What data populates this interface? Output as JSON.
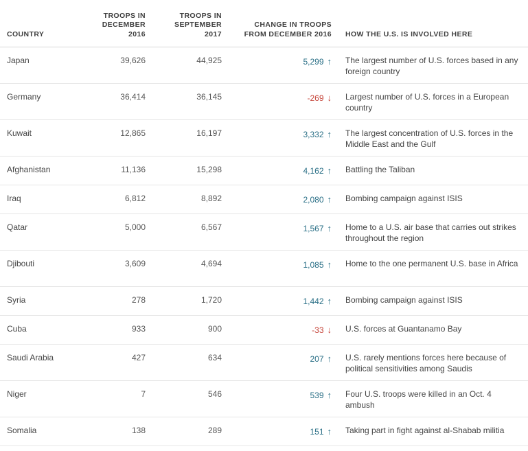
{
  "headers": {
    "country": "COUNTRY",
    "december": [
      "TROOPS IN",
      "DECEMBER",
      "2016"
    ],
    "september": [
      "TROOPS IN",
      "SEPTEMBER",
      "2017"
    ],
    "change": [
      "CHANGE IN TROOPS",
      "FROM DECEMBER 2016"
    ],
    "how": "HOW THE U.S. IS INVOLVED HERE"
  },
  "colors": {
    "increase": "#2a6f86",
    "decrease": "#c6463b"
  },
  "rows": [
    {
      "country": "Japan",
      "dec": "39,626",
      "sep": "44,925",
      "change": "5,299",
      "direction": "up",
      "arrow": "↑",
      "how": "The largest number of U.S. forces based in any foreign country"
    },
    {
      "country": "Germany",
      "dec": "36,414",
      "sep": "36,145",
      "change": "-269",
      "direction": "down",
      "arrow": "↓",
      "how": "Largest number of U.S. forces in a European country"
    },
    {
      "country": "Kuwait",
      "dec": "12,865",
      "sep": "16,197",
      "change": "3,332",
      "direction": "up",
      "arrow": "↑",
      "how": "The largest concentration of U.S. forces in the Middle East and the Gulf"
    },
    {
      "country": "Afghanistan",
      "dec": "11,136",
      "sep": "15,298",
      "change": "4,162",
      "direction": "up",
      "arrow": "↑",
      "how": "Battling the Taliban"
    },
    {
      "country": "Iraq",
      "dec": "6,812",
      "sep": "8,892",
      "change": "2,080",
      "direction": "up",
      "arrow": "↑",
      "how": "Bombing campaign against ISIS"
    },
    {
      "country": "Qatar",
      "dec": "5,000",
      "sep": "6,567",
      "change": "1,567",
      "direction": "up",
      "arrow": "↑",
      "how": "Home to a U.S. air base that carries out strikes throughout the region"
    },
    {
      "country": "Djibouti",
      "dec": "3,609",
      "sep": "4,694",
      "change": "1,085",
      "direction": "up",
      "arrow": "↑",
      "how": "Home to the one permanent U.S. base in Africa"
    },
    {
      "country": "Syria",
      "dec": "278",
      "sep": "1,720",
      "change": "1,442",
      "direction": "up",
      "arrow": "↑",
      "how": "Bombing campaign against ISIS"
    },
    {
      "country": "Cuba",
      "dec": "933",
      "sep": "900",
      "change": "-33",
      "direction": "down",
      "arrow": "↓",
      "how": "U.S. forces at Guantanamo Bay"
    },
    {
      "country": "Saudi Arabia",
      "dec": "427",
      "sep": "634",
      "change": "207",
      "direction": "up",
      "arrow": "↑",
      "how": "U.S. rarely mentions forces here because of political sensitivities among Saudis"
    },
    {
      "country": "Niger",
      "dec": "7",
      "sep": "546",
      "change": "539",
      "direction": "up",
      "arrow": "↑",
      "how": "Four U.S. troops were killed in an Oct. 4 ambush"
    },
    {
      "country": "Somalia",
      "dec": "138",
      "sep": "289",
      "change": "151",
      "direction": "up",
      "arrow": "↑",
      "how": "Taking part in fight against al-Shabab militia"
    }
  ]
}
